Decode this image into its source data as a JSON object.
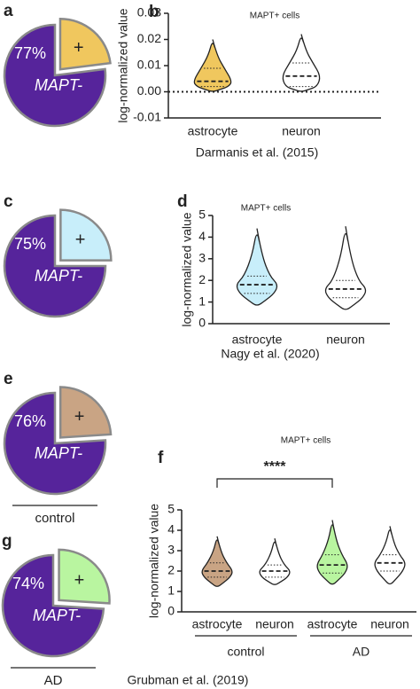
{
  "chart_data": [
    {
      "type": "pie",
      "panel": "a",
      "categories": [
        "MAPT-",
        "+"
      ],
      "values": [
        77,
        23
      ],
      "value_labels": [
        "77%",
        null
      ],
      "colors": [
        "#56249b",
        "#f0c75e"
      ]
    },
    {
      "type": "violin",
      "panel": "b",
      "title": "MAPT+ cells",
      "ylabel": "log-normalized value",
      "ylim": [
        -0.01,
        0.03
      ],
      "yticks": [
        -0.01,
        {
          "value": 0,
          "label": "0.00"
        },
        0.01,
        0.02,
        0.03
      ],
      "zero_line": true,
      "series": [
        {
          "name": "astrocyte",
          "color": "#f0c75e",
          "min": 0.0,
          "q1": 0.002,
          "median": 0.004,
          "q3": 0.009,
          "max": 0.02
        },
        {
          "name": "neuron",
          "color": "#ffffff",
          "min": 0.0,
          "q1": 0.002,
          "median": 0.006,
          "q3": 0.011,
          "max": 0.022
        }
      ],
      "caption": "Darmanis et al. (2015)"
    },
    {
      "type": "pie",
      "panel": "c",
      "categories": [
        "MAPT-",
        "+"
      ],
      "values": [
        75,
        25
      ],
      "value_labels": [
        "75%",
        null
      ],
      "colors": [
        "#56249b",
        "#c8eefa"
      ]
    },
    {
      "type": "violin",
      "panel": "d",
      "title": "MAPT+ cells",
      "ylabel": "log-normalized value",
      "ylim": [
        0,
        5
      ],
      "yticks": [
        0,
        1,
        2,
        3,
        4,
        5
      ],
      "series": [
        {
          "name": "astrocyte",
          "color": "#c8eefa",
          "min": 0.8,
          "q1": 1.4,
          "median": 1.8,
          "q3": 2.2,
          "max": 4.4
        },
        {
          "name": "neuron",
          "color": "#ffffff",
          "min": 0.6,
          "q1": 1.2,
          "median": 1.6,
          "q3": 2.0,
          "max": 4.5
        }
      ],
      "caption": "Nagy et al. (2020)"
    },
    {
      "type": "pie",
      "panel": "e",
      "categories": [
        "MAPT-",
        "+"
      ],
      "values": [
        76,
        24
      ],
      "value_labels": [
        "76%",
        null
      ],
      "colors": [
        "#56249b",
        "#c9a484"
      ],
      "caption": "control"
    },
    {
      "type": "violin",
      "panel": "f",
      "title": "MAPT+ cells",
      "ylabel": "log-normalized value",
      "ylim": [
        0,
        5
      ],
      "yticks": [
        0,
        1,
        2,
        3,
        4,
        5
      ],
      "annotation": "****",
      "groups": [
        "control",
        "AD"
      ],
      "series": [
        {
          "name": "astrocyte",
          "color": "#c9a484",
          "min": 1.2,
          "q1": 1.7,
          "median": 2.0,
          "q3": 2.4,
          "max": 3.7
        },
        {
          "name": "neuron",
          "color": "#ffffff",
          "min": 1.3,
          "q1": 1.7,
          "median": 2.0,
          "q3": 2.3,
          "max": 3.6
        },
        {
          "name": "astrocyte",
          "color": "#b9f5a0",
          "min": 1.3,
          "q1": 1.9,
          "median": 2.3,
          "q3": 2.8,
          "max": 4.5
        },
        {
          "name": "neuron",
          "color": "#ffffff",
          "min": 1.3,
          "q1": 2.0,
          "median": 2.4,
          "q3": 2.8,
          "max": 4.2
        }
      ],
      "caption": "Grubman et al. (2019)"
    },
    {
      "type": "pie",
      "panel": "g",
      "categories": [
        "MAPT-",
        "+"
      ],
      "values": [
        74,
        26
      ],
      "value_labels": [
        "74%",
        null
      ],
      "colors": [
        "#56249b",
        "#b9f5a0"
      ],
      "caption": "AD"
    }
  ]
}
